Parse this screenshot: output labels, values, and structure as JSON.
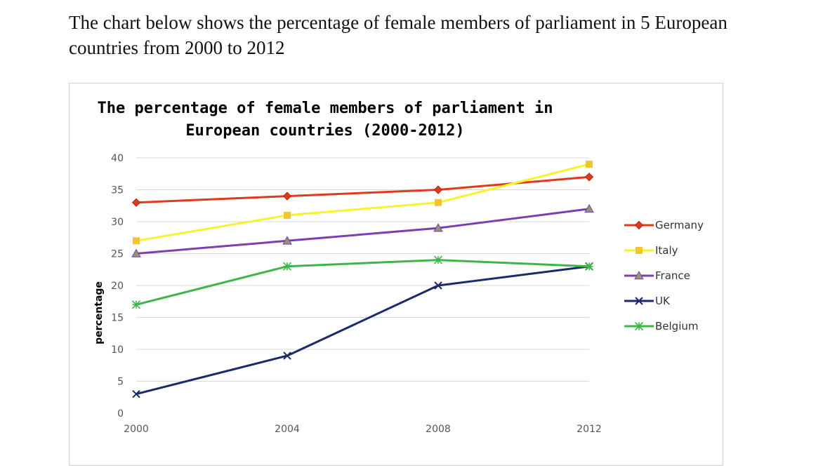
{
  "intro_text": "The chart below shows the percentage of female members of parliament in 5 European countries from 2000 to 2012",
  "chart_data": {
    "type": "line",
    "title_line1": "The percentage of female members of parliament in",
    "title_line2": "European countries (2000-2012)",
    "xlabel": "",
    "ylabel": "percentage",
    "x": [
      "2000",
      "2004",
      "2008",
      "2012"
    ],
    "ylim": [
      0,
      40
    ],
    "yticks": [
      0,
      5,
      10,
      15,
      20,
      25,
      30,
      35,
      40
    ],
    "grid": true,
    "legend_position": "right",
    "series": [
      {
        "name": "Germany",
        "values": [
          33,
          34,
          35,
          37
        ],
        "color": "#e03a1e",
        "marker": "diamond"
      },
      {
        "name": "Italy",
        "values": [
          27,
          31,
          33,
          39
        ],
        "color": "#f7f22e",
        "marker_color": "#f2c530",
        "marker": "square"
      },
      {
        "name": "France",
        "values": [
          25,
          27,
          29,
          32
        ],
        "color": "#7d3fb0",
        "marker_color": "#8a9a6a",
        "marker": "triangle"
      },
      {
        "name": "UK",
        "values": [
          3,
          9,
          20,
          23
        ],
        "color": "#1b2a6b",
        "marker": "x"
      },
      {
        "name": "Belgium",
        "values": [
          17,
          23,
          24,
          23
        ],
        "color": "#3db54a",
        "marker": "star"
      }
    ]
  }
}
